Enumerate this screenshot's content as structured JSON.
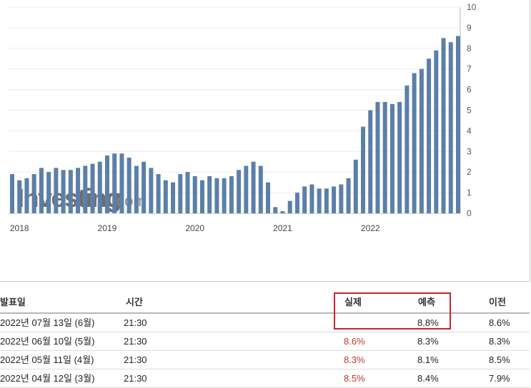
{
  "chart_data": {
    "type": "bar",
    "color": "#5b7fa8",
    "yaxis_position": "right",
    "ylim": [
      0,
      10
    ],
    "yticks": [
      "10",
      "9",
      "8",
      "7",
      "6",
      "5",
      "4",
      "3",
      "2",
      "1",
      "0"
    ],
    "xticks": [
      "2018",
      "2019",
      "2020",
      "2021",
      "2022"
    ],
    "grid": true,
    "values": [
      1.9,
      1.6,
      1.7,
      1.9,
      2.2,
      2.0,
      2.2,
      2.1,
      2.1,
      2.2,
      2.3,
      2.4,
      2.5,
      2.8,
      2.9,
      2.9,
      2.7,
      2.3,
      2.5,
      2.2,
      1.9,
      1.6,
      1.5,
      1.9,
      2.0,
      1.8,
      1.6,
      1.8,
      1.7,
      1.7,
      1.8,
      2.1,
      2.3,
      2.5,
      2.3,
      1.5,
      0.3,
      0.1,
      0.6,
      1.0,
      1.3,
      1.4,
      1.2,
      1.2,
      1.3,
      1.4,
      1.7,
      2.6,
      4.2,
      5.0,
      5.4,
      5.4,
      5.3,
      5.4,
      6.2,
      6.8,
      7.0,
      7.5,
      7.9,
      8.5,
      8.3,
      8.6
    ]
  },
  "watermark": {
    "main": "Investing",
    "sub": ".com"
  },
  "table": {
    "headers": {
      "date": "발표일",
      "time": "시간",
      "actual": "실제",
      "forecast": "예측",
      "previous": "이전"
    },
    "rows": [
      {
        "date": "2022년 07월 13일 (6월)",
        "time": "21:30",
        "actual": "",
        "forecast": "8.8%",
        "previous": "8.6%"
      },
      {
        "date": "2022년 06월 10일 (5월)",
        "time": "21:30",
        "actual": "8.6%",
        "forecast": "8.3%",
        "previous": "8.3%"
      },
      {
        "date": "2022년 05월 11일 (4월)",
        "time": "21:30",
        "actual": "8.3%",
        "forecast": "8.1%",
        "previous": "8.5%"
      },
      {
        "date": "2022년 04월 12일 (3월)",
        "time": "21:30",
        "actual": "8.5%",
        "forecast": "8.4%",
        "previous": "7.9%"
      }
    ]
  }
}
